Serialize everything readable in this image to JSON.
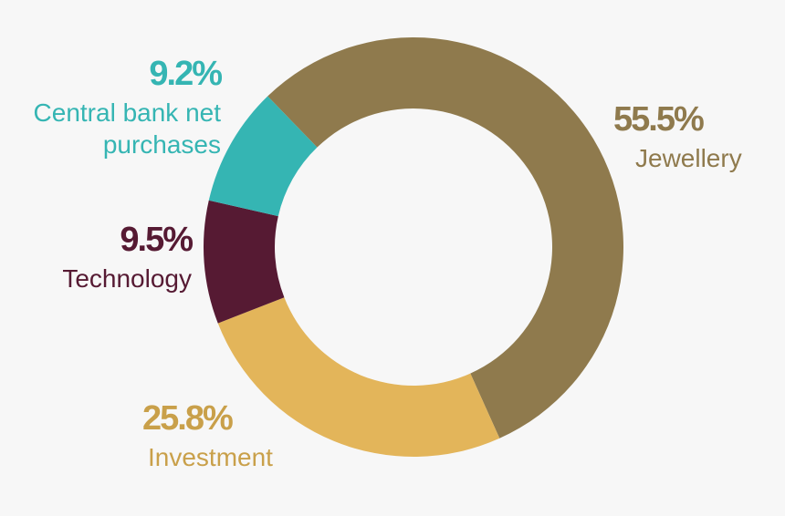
{
  "chart_data": {
    "type": "pie",
    "donut": true,
    "categories": [
      "Jewellery",
      "Investment",
      "Technology",
      "Central bank net purchases"
    ],
    "values": [
      55.5,
      25.8,
      9.5,
      9.2
    ],
    "value_labels": [
      "55.5%",
      "25.8%",
      "9.5%",
      "9.2%"
    ],
    "colors": [
      "#8f7a4d",
      "#e3b55a",
      "#561a33",
      "#35b5b3"
    ]
  }
}
